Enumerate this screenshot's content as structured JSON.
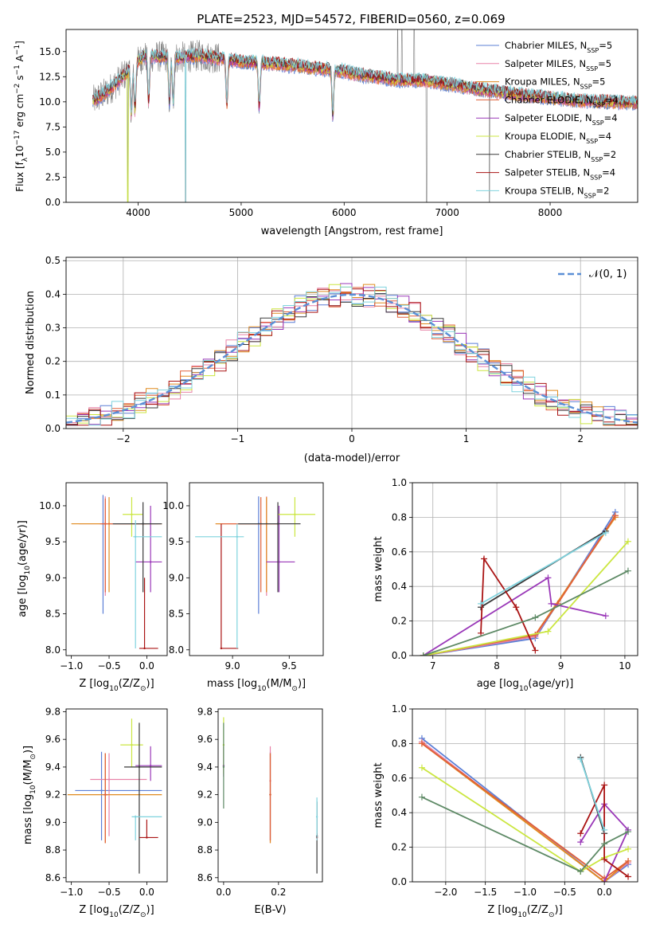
{
  "figure": {
    "title": "PLATE=2523, MJD=54572, FIBERID=0560, z=0.069"
  },
  "models": [
    {
      "name": "Chabrier MILES, N",
      "sub": "SSP",
      "tail": "=5",
      "color": "#5b7fd6"
    },
    {
      "name": "Salpeter MILES, N",
      "sub": "SSP",
      "tail": "=5",
      "color": "#e882a8"
    },
    {
      "name": "Kroupa MILES, N",
      "sub": "SSP",
      "tail": "=5",
      "color": "#e08a1e"
    },
    {
      "name": "Chabrier ELODIE, N",
      "sub": "SSP",
      "tail": "=4",
      "color": "#e0603a"
    },
    {
      "name": "Salpeter ELODIE, N",
      "sub": "SSP",
      "tail": "=4",
      "color": "#9a38b8"
    },
    {
      "name": "Kroupa ELODIE, N",
      "sub": "SSP",
      "tail": "=4",
      "color": "#cbe640"
    },
    {
      "name": "Chabrier STELIB, N",
      "sub": "SSP",
      "tail": "=2",
      "color": "#3a3a3a"
    },
    {
      "name": "Salpeter STELIB, N",
      "sub": "SSP",
      "tail": "=4",
      "color": "#aa1414"
    },
    {
      "name": "Kroupa STELIB, N",
      "sub": "SSP",
      "tail": "=2",
      "color": "#7fd3de"
    }
  ],
  "chart_data": [
    {
      "id": "spectrum",
      "type": "line",
      "xlabel": "wavelength [Angstrom, rest frame]",
      "ylabel_main": "Flux [f",
      "ylabel_sub": "λ",
      "ylabel_mid": "10",
      "ylabel_sup1": "−17",
      "ylabel_mid2": " erg cm",
      "ylabel_sup2": "−2",
      "ylabel_mid3": " s",
      "ylabel_sup3": "−1",
      "ylabel_mid4": " A",
      "ylabel_sup4": "−1",
      "ylabel_end": "]",
      "xlim": [
        3300,
        8850
      ],
      "ylim": [
        0,
        17.2
      ],
      "xticks": [
        4000,
        5000,
        6000,
        7000,
        8000
      ],
      "xtick_labels": [
        "4000",
        "5000",
        "6000",
        "7000",
        "8000"
      ],
      "yticks": [
        0,
        2.5,
        5,
        7.5,
        10,
        12.5,
        15
      ],
      "ytick_labels": [
        "0.0",
        "2.5",
        "5.0",
        "7.5",
        "10.0",
        "12.5",
        "15.0"
      ],
      "data_color": "#808080",
      "continuum": [
        [
          3550,
          10.0
        ],
        [
          3700,
          11.0
        ],
        [
          3850,
          12.5
        ],
        [
          3950,
          13.5
        ],
        [
          4050,
          14.5
        ],
        [
          4200,
          14.5
        ],
        [
          4400,
          14.4
        ],
        [
          4600,
          14.6
        ],
        [
          4800,
          14.3
        ],
        [
          5000,
          14.0
        ],
        [
          5300,
          13.8
        ],
        [
          5600,
          13.5
        ],
        [
          5900,
          13.2
        ],
        [
          6200,
          12.6
        ],
        [
          6500,
          12.2
        ],
        [
          6800,
          12.1
        ],
        [
          7100,
          11.6
        ],
        [
          7400,
          11.1
        ],
        [
          7700,
          10.7
        ],
        [
          8000,
          10.4
        ],
        [
          8300,
          10.1
        ],
        [
          8850,
          9.9
        ]
      ],
      "absorption_lines": [
        3934,
        3969,
        4102,
        4304,
        4340,
        4861,
        5175,
        5890
      ],
      "data_dips": [
        [
          3900,
          0
        ],
        [
          4460,
          0
        ],
        [
          6800,
          0
        ],
        [
          7410,
          0
        ]
      ],
      "data_spikes": [
        [
          6520,
          17.2
        ],
        [
          6560,
          17.2
        ],
        [
          6680,
          17.2
        ]
      ]
    },
    {
      "id": "residuals",
      "type": "bar",
      "xlabel": "(data-model)/error",
      "ylabel": "Normed distribution",
      "xlim": [
        -2.5,
        2.5
      ],
      "ylim": [
        0,
        0.51
      ],
      "xticks": [
        -2,
        -1,
        0,
        1,
        2
      ],
      "xtick_labels": [
        "−2",
        "−1",
        "0",
        "1",
        "2"
      ],
      "yticks": [
        0,
        0.1,
        0.2,
        0.3,
        0.4,
        0.5
      ],
      "ytick_labels": [
        "0.0",
        "0.1",
        "0.2",
        "0.3",
        "0.4",
        "0.5"
      ],
      "grid": true,
      "legend_label": "𝒩(0, 1)",
      "legend_color": "#5b8fd6",
      "bin_width": 0.1,
      "bin_start": -2.5
    },
    {
      "id": "age_vs_Z",
      "type": "scatter",
      "xlabel": "Z [log",
      "xlabel_sub": "10",
      "xlabel_end": "(Z/Z",
      "xlabel_sub2": "⊙",
      "xlabel_close": ")]",
      "ylabel": "age  [log",
      "ylabel_sub": "10",
      "ylabel_end": "(age/yr)]",
      "xlim": [
        -1.07,
        0.27
      ],
      "ylim": [
        7.92,
        10.32
      ],
      "xticks": [
        -1.0,
        -0.5,
        0.0
      ],
      "xtick_labels": [
        "−1.0",
        "−0.5",
        "0.0"
      ],
      "yticks": [
        8.0,
        8.5,
        9.0,
        9.5,
        10.0
      ],
      "ytick_labels": [
        "8.0",
        "8.5",
        "9.0",
        "9.5",
        "10.0"
      ],
      "points": [
        {
          "model": 0,
          "x": -0.58,
          "y": 9.75,
          "x_lo": -0.6,
          "x_hi": 0.15,
          "y_lo": 8.5,
          "y_hi": 10.15
        },
        {
          "model": 1,
          "x": -0.55,
          "y": 9.75,
          "x_lo": -0.9,
          "x_hi": 0.2,
          "y_lo": 8.75,
          "y_hi": 10.13
        },
        {
          "model": 2,
          "x": -0.5,
          "y": 9.75,
          "x_lo": -1.0,
          "x_hi": 0.2,
          "y_lo": 8.8,
          "y_hi": 10.12
        },
        {
          "model": 3,
          "x": -0.55,
          "y": 9.75,
          "x_lo": -0.62,
          "x_hi": 0.0,
          "y_lo": 8.8,
          "y_hi": 10.1
        },
        {
          "model": 4,
          "x": 0.05,
          "y": 9.22,
          "x_lo": -0.15,
          "x_hi": 0.2,
          "y_lo": 8.8,
          "y_hi": 10.0
        },
        {
          "model": 5,
          "x": -0.2,
          "y": 9.88,
          "x_lo": -0.32,
          "x_hi": -0.05,
          "y_lo": 9.57,
          "y_hi": 10.12
        },
        {
          "model": 6,
          "x": -0.05,
          "y": 9.75,
          "x_lo": -0.45,
          "x_hi": 0.2,
          "y_lo": 8.8,
          "y_hi": 10.05
        },
        {
          "model": 7,
          "x": -0.03,
          "y": 8.02,
          "x_lo": -0.1,
          "x_hi": 0.15,
          "y_lo": 8.02,
          "y_hi": 9.0
        },
        {
          "model": 8,
          "x": -0.15,
          "y": 9.57,
          "x_lo": -0.18,
          "x_hi": 0.2,
          "y_lo": 8.02,
          "y_hi": 9.8
        }
      ]
    },
    {
      "id": "age_vs_mass",
      "type": "scatter",
      "xlabel": "mass [log",
      "xlabel_sub": "10",
      "xlabel_end": "(M/M",
      "xlabel_sub2": "⊙",
      "xlabel_close": ")]",
      "xlim": [
        8.62,
        9.8
      ],
      "ylim": [
        7.92,
        10.32
      ],
      "xticks": [
        9.0,
        9.5
      ],
      "xtick_labels": [
        "9.0",
        "9.5"
      ],
      "yticks": [
        8.0,
        8.5,
        9.0,
        9.5,
        10.0
      ],
      "ytick_labels": [
        "8.0",
        "8.5",
        "9.0",
        "9.5",
        "10.0"
      ],
      "points": [
        {
          "model": 0,
          "x": 9.23,
          "y": 9.75,
          "x_lo": 9.05,
          "x_hi": 9.4,
          "y_lo": 8.5,
          "y_hi": 10.13
        },
        {
          "model": 1,
          "x": 9.3,
          "y": 9.75,
          "x_lo": 8.85,
          "x_hi": 9.4,
          "y_lo": 8.75,
          "y_hi": 10.13
        },
        {
          "model": 2,
          "x": 9.3,
          "y": 9.75,
          "x_lo": 8.85,
          "x_hi": 9.4,
          "y_lo": 8.8,
          "y_hi": 10.12
        },
        {
          "model": 3,
          "x": 9.25,
          "y": 9.75,
          "x_lo": 8.9,
          "x_hi": 9.4,
          "y_lo": 8.8,
          "y_hi": 10.12
        },
        {
          "model": 4,
          "x": 9.41,
          "y": 9.22,
          "x_lo": 9.3,
          "x_hi": 9.55,
          "y_lo": 8.8,
          "y_hi": 10.0
        },
        {
          "model": 5,
          "x": 9.55,
          "y": 9.88,
          "x_lo": 9.4,
          "x_hi": 9.73,
          "y_lo": 9.57,
          "y_hi": 10.12
        },
        {
          "model": 6,
          "x": 9.4,
          "y": 9.75,
          "x_lo": 9.05,
          "x_hi": 9.6,
          "y_lo": 8.8,
          "y_hi": 10.05
        },
        {
          "model": 7,
          "x": 8.9,
          "y": 8.02,
          "x_lo": 8.9,
          "x_hi": 9.05,
          "y_lo": 8.02,
          "y_hi": 9.75
        },
        {
          "model": 8,
          "x": 9.04,
          "y": 9.57,
          "x_lo": 8.67,
          "x_hi": 9.1,
          "y_lo": 8.02,
          "y_hi": 9.75
        }
      ]
    },
    {
      "id": "weight_vs_age",
      "type": "line",
      "xlabel": "age  [log",
      "xlabel_sub": "10",
      "xlabel_end": "(age/yr)]",
      "ylabel": "mass weight",
      "xlim": [
        6.68,
        10.2
      ],
      "ylim": [
        0,
        1.0
      ],
      "xticks": [
        7,
        8,
        9,
        10
      ],
      "xtick_labels": [
        "7",
        "8",
        "9",
        "10"
      ],
      "yticks": [
        0,
        0.2,
        0.4,
        0.6,
        0.8,
        1.0
      ],
      "ytick_labels": [
        "0.0",
        "0.2",
        "0.4",
        "0.6",
        "0.8",
        "1.0"
      ],
      "grid": true,
      "series": [
        {
          "model": 0,
          "x": [
            6.85,
            8.6,
            9.85
          ],
          "y": [
            0.0,
            0.1,
            0.83
          ]
        },
        {
          "model": 1,
          "x": [
            6.85,
            8.6,
            9.85
          ],
          "y": [
            0.0,
            0.11,
            0.81
          ]
        },
        {
          "model": 2,
          "x": [
            6.85,
            8.6,
            9.85
          ],
          "y": [
            0.0,
            0.12,
            0.8
          ]
        },
        {
          "model": 3,
          "x": [
            6.85,
            8.6,
            8.95,
            9.85
          ],
          "y": [
            0.0,
            0.12,
            0.3,
            0.81
          ]
        },
        {
          "model": 4,
          "x": [
            6.85,
            8.8,
            8.85,
            9.7
          ],
          "y": [
            0.0,
            0.45,
            0.3,
            0.23
          ]
        },
        {
          "model": 5,
          "x": [
            6.85,
            8.8,
            10.05
          ],
          "y": [
            0.0,
            0.14,
            0.66
          ]
        },
        {
          "model": 6,
          "x": [
            7.75,
            9.7
          ],
          "y": [
            0.28,
            0.72
          ]
        },
        {
          "model": 7,
          "x": [
            7.75,
            7.8,
            8.3,
            8.6
          ],
          "y": [
            0.13,
            0.56,
            0.28,
            0.03
          ]
        },
        {
          "model": 8,
          "x": [
            7.75,
            9.7
          ],
          "y": [
            0.3,
            0.71
          ]
        },
        {
          "model": 9,
          "x": [
            6.85,
            8.6,
            10.05
          ],
          "y": [
            0.0,
            0.22,
            0.49
          ]
        }
      ]
    },
    {
      "id": "mass_vs_Z",
      "type": "scatter",
      "xlabel": "Z [log",
      "xlabel_sub": "10",
      "xlabel_end": "(Z/Z",
      "xlabel_sub2": "⊙",
      "xlabel_close": ")]",
      "ylabel": "mass [log",
      "ylabel_sub": "10",
      "ylabel_end": "(M/M",
      "ylabel_sub2": "⊙",
      "ylabel_close": ")]",
      "xlim": [
        -1.07,
        0.27
      ],
      "ylim": [
        8.57,
        9.82
      ],
      "xticks": [
        -1.0,
        -0.5,
        0.0
      ],
      "xtick_labels": [
        "−1.0",
        "−0.5",
        "0.0"
      ],
      "yticks": [
        8.6,
        8.8,
        9.0,
        9.2,
        9.4,
        9.6,
        9.8
      ],
      "ytick_labels": [
        "8.6",
        "8.8",
        "9.0",
        "9.2",
        "9.4",
        "9.6",
        "9.8"
      ],
      "points": [
        {
          "model": 0,
          "x": -0.6,
          "y": 9.23,
          "x_lo": -0.95,
          "x_hi": 0.2,
          "y_lo": 8.87,
          "y_hi": 9.51
        },
        {
          "model": 1,
          "x": -0.5,
          "y": 9.31,
          "x_lo": -0.75,
          "x_hi": 0.0,
          "y_lo": 8.9,
          "y_hi": 9.5
        },
        {
          "model": 2,
          "x": -0.55,
          "y": 9.2,
          "x_lo": -1.05,
          "x_hi": 0.2,
          "y_lo": 8.85,
          "y_hi": 9.5
        },
        {
          "model": 3,
          "x": -0.55,
          "y": 9.2,
          "x_lo": -0.58,
          "x_hi": -0.52,
          "y_lo": 8.85,
          "y_hi": 9.5
        },
        {
          "model": 4,
          "x": 0.05,
          "y": 9.41,
          "x_lo": -0.15,
          "x_hi": 0.2,
          "y_lo": 9.3,
          "y_hi": 9.55
        },
        {
          "model": 5,
          "x": -0.2,
          "y": 9.56,
          "x_lo": -0.35,
          "x_hi": -0.05,
          "y_lo": 9.4,
          "y_hi": 9.75
        },
        {
          "model": 6,
          "x": -0.1,
          "y": 9.4,
          "x_lo": -0.3,
          "x_hi": 0.2,
          "y_lo": 8.63,
          "y_hi": 9.72
        },
        {
          "model": 7,
          "x": 0.0,
          "y": 8.89,
          "x_lo": -0.1,
          "x_hi": 0.15,
          "y_lo": 8.89,
          "y_hi": 9.02
        },
        {
          "model": 8,
          "x": -0.15,
          "y": 9.04,
          "x_lo": -0.2,
          "x_hi": 0.2,
          "y_lo": 8.87,
          "y_hi": 9.05
        }
      ]
    },
    {
      "id": "mass_vs_ebv",
      "type": "scatter",
      "xlabel": "E(B-V)",
      "xlim": [
        -0.02,
        0.36
      ],
      "ylim": [
        8.57,
        9.82
      ],
      "xticks": [
        0.0,
        0.2
      ],
      "xtick_labels": [
        "0.0",
        "0.2"
      ],
      "yticks": [
        8.6,
        8.8,
        9.0,
        9.2,
        9.4,
        9.6,
        9.8
      ],
      "ytick_labels": [
        "8.6",
        "8.8",
        "9.0",
        "9.2",
        "9.4",
        "9.6",
        "9.8"
      ],
      "points": [
        {
          "model": 0,
          "x": 0.17,
          "y": 9.2,
          "y_lo": 8.87,
          "y_hi": 9.51
        },
        {
          "model": 1,
          "x": 0.17,
          "y": 9.3,
          "y_lo": 8.85,
          "y_hi": 9.55
        },
        {
          "model": 2,
          "x": 0.17,
          "y": 9.2,
          "y_lo": 8.85,
          "y_hi": 9.5
        },
        {
          "model": 3,
          "x": 0.17,
          "y": 9.2,
          "y_lo": 8.87,
          "y_hi": 9.5
        },
        {
          "model": 4,
          "x": 0.0,
          "y": 9.41,
          "y_lo": 9.33,
          "y_hi": 9.55
        },
        {
          "model": 5,
          "x": 0.0,
          "y": 9.56,
          "y_lo": 9.35,
          "y_hi": 9.76
        },
        {
          "model": 6,
          "x": 0.34,
          "y": 8.9,
          "y_lo": 8.63,
          "y_hi": 9.15
        },
        {
          "model": 7,
          "x": 0.34,
          "y": 8.89,
          "y_lo": 8.87,
          "y_hi": 8.92
        },
        {
          "model": 8,
          "x": 0.34,
          "y": 9.04,
          "y_lo": 8.87,
          "y_hi": 9.18
        },
        {
          "model": 9,
          "x": 0.0,
          "y": 9.4,
          "y_lo": 9.1,
          "y_hi": 9.72
        }
      ]
    },
    {
      "id": "weight_vs_Z",
      "type": "line",
      "xlabel": "Z [log",
      "xlabel_sub": "10",
      "xlabel_end": "(Z/Z",
      "xlabel_sub2": "⊙",
      "xlabel_close": ")]",
      "ylabel": "mass weight",
      "xlim": [
        -2.42,
        0.42
      ],
      "ylim": [
        0,
        1.0
      ],
      "xticks": [
        -2.0,
        -1.5,
        -1.0,
        -0.5,
        0.0
      ],
      "xtick_labels": [
        "−2.0",
        "−1.5",
        "−1.0",
        "−0.5",
        "0.0"
      ],
      "yticks": [
        0,
        0.2,
        0.4,
        0.6,
        0.8,
        1.0
      ],
      "ytick_labels": [
        "0.0",
        "0.2",
        "0.4",
        "0.6",
        "0.8",
        "1.0"
      ],
      "grid": true,
      "series": [
        {
          "model": 0,
          "x": [
            -2.3,
            0.0,
            0.3
          ],
          "y": [
            0.83,
            0.0,
            0.1
          ]
        },
        {
          "model": 1,
          "x": [
            -2.3,
            0.0,
            0.3
          ],
          "y": [
            0.81,
            0.0,
            0.11
          ]
        },
        {
          "model": 2,
          "x": [
            -2.3,
            0.0,
            0.3
          ],
          "y": [
            0.8,
            0.0,
            0.12
          ]
        },
        {
          "model": 3,
          "x": [
            -2.3,
            0.0,
            0.3
          ],
          "y": [
            0.8,
            0.02,
            0.12
          ]
        },
        {
          "model": 4,
          "x": [
            -0.3,
            0.0,
            0.3,
            0.0
          ],
          "y": [
            0.23,
            0.45,
            0.3,
            0.0
          ]
        },
        {
          "model": 5,
          "x": [
            -2.3,
            -0.3,
            0.0,
            0.3
          ],
          "y": [
            0.66,
            0.06,
            0.14,
            0.19
          ]
        },
        {
          "model": 6,
          "x": [
            -0.3,
            0.0
          ],
          "y": [
            0.72,
            0.28
          ]
        },
        {
          "model": 7,
          "x": [
            -0.3,
            0.0,
            0.0,
            0.3
          ],
          "y": [
            0.28,
            0.56,
            0.13,
            0.03
          ]
        },
        {
          "model": 8,
          "x": [
            -0.3,
            0.0
          ],
          "y": [
            0.71,
            0.3
          ]
        },
        {
          "model": 9,
          "x": [
            -2.3,
            -0.3,
            0.0,
            0.3
          ],
          "y": [
            0.49,
            0.06,
            0.22,
            0.29
          ]
        }
      ]
    }
  ]
}
